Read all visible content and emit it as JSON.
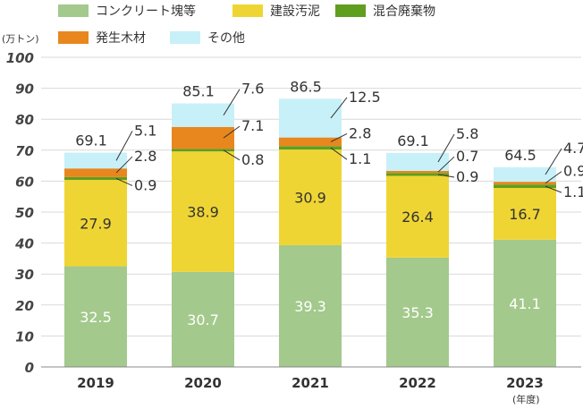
{
  "chart_data": {
    "type": "bar",
    "stacked": true,
    "y_unit_label": "(万トン)",
    "x_unit_label": "(年度)",
    "ylim": [
      0,
      100
    ],
    "yticks": [
      0,
      10,
      20,
      30,
      40,
      50,
      60,
      70,
      80,
      90,
      100
    ],
    "grid": true,
    "legend_position": "top",
    "categories": [
      "2019",
      "2020",
      "2021",
      "2022",
      "2023"
    ],
    "totals": [
      69.1,
      85.1,
      86.5,
      69.1,
      64.5
    ],
    "totals_labels": [
      "69.1",
      "85.1",
      "86.5",
      "69.1",
      "64.5"
    ],
    "series": [
      {
        "name": "コンクリート塊等",
        "color": "#a3c98c",
        "values": [
          32.5,
          30.7,
          39.3,
          35.3,
          41.1
        ],
        "labels": [
          "32.5",
          "30.7",
          "39.3",
          "35.3",
          "41.1"
        ]
      },
      {
        "name": "建設汚泥",
        "color": "#efd534",
        "values": [
          27.9,
          38.9,
          30.9,
          26.4,
          16.7
        ],
        "labels": [
          "27.9",
          "38.9",
          "30.9",
          "26.4",
          "16.7"
        ]
      },
      {
        "name": "混合廃棄物",
        "color": "#5f9e1f",
        "values": [
          0.9,
          0.8,
          1.1,
          0.9,
          1.1
        ],
        "labels": [
          "0.9",
          "0.8",
          "1.1",
          "0.9",
          "1.1"
        ]
      },
      {
        "name": "発生木材",
        "color": "#e8871e",
        "values": [
          2.8,
          7.1,
          2.8,
          0.7,
          0.9
        ],
        "labels": [
          "2.8",
          "7.1",
          "2.8",
          "0.7",
          "0.9"
        ]
      },
      {
        "name": "その他",
        "color": "#c8f0f8",
        "values": [
          5.1,
          7.6,
          12.5,
          5.8,
          4.7
        ],
        "labels": [
          "5.1",
          "7.6",
          "12.5",
          "5.8",
          "4.7"
        ]
      }
    ]
  }
}
